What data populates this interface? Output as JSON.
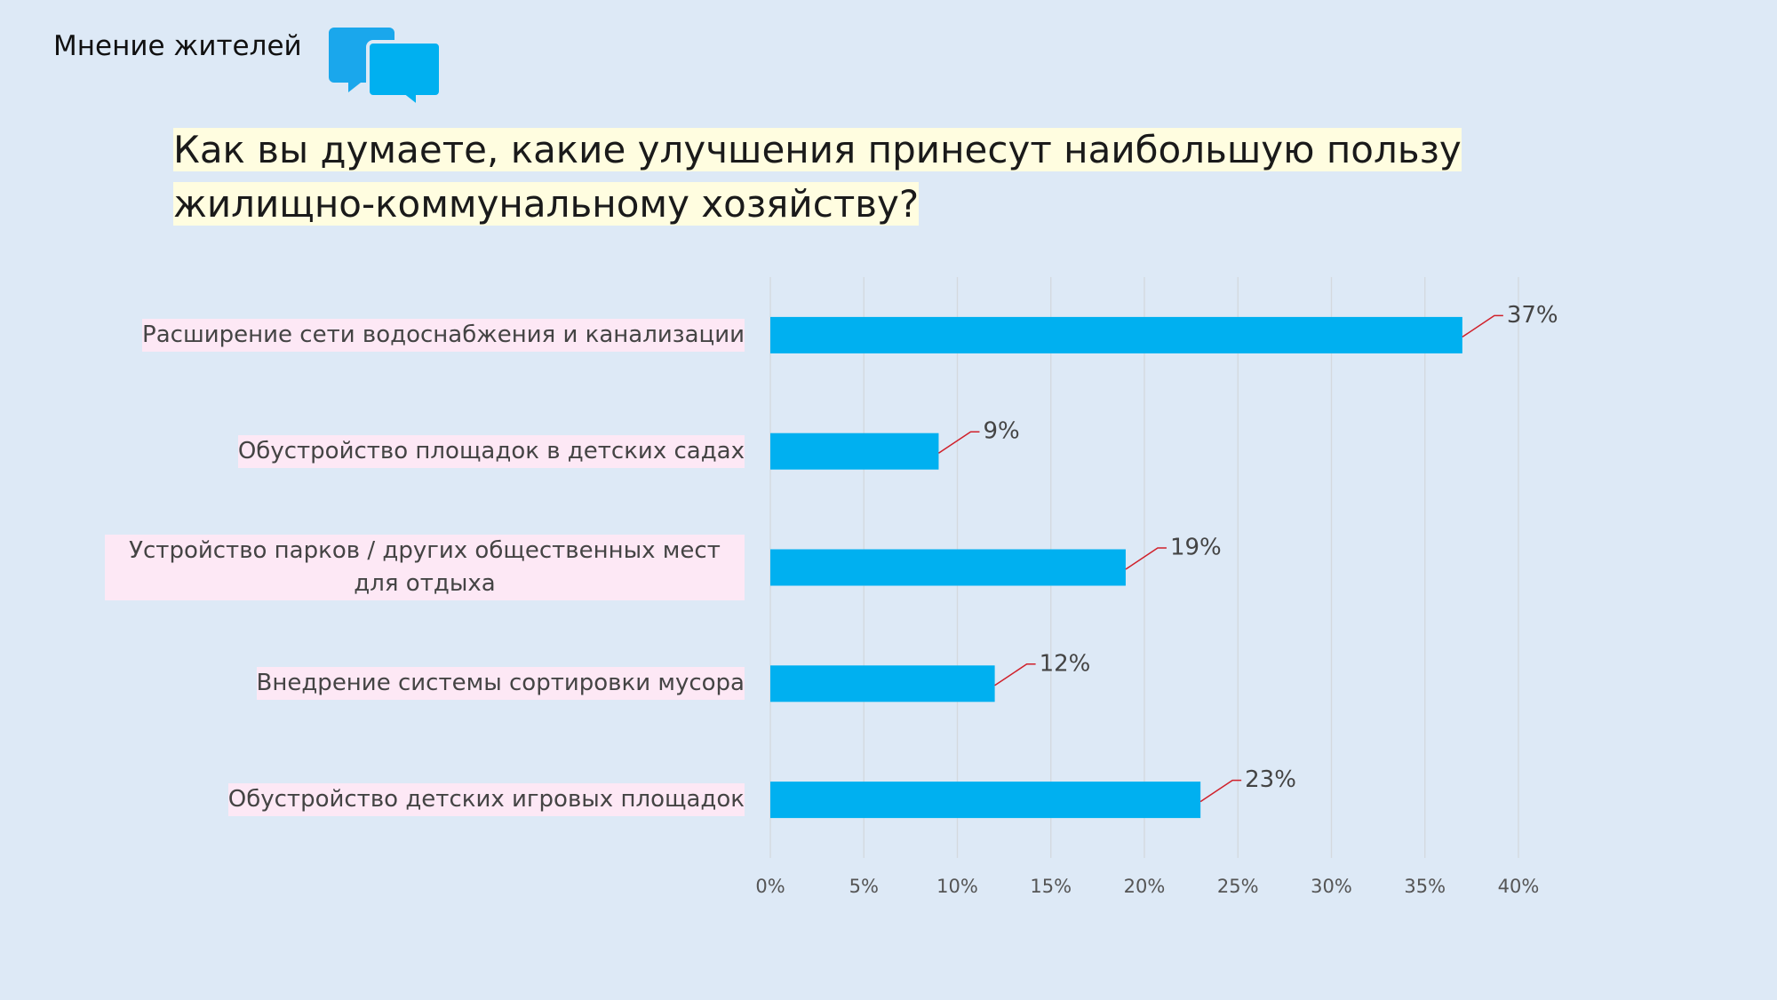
{
  "header": {
    "title": "Мнение жителей"
  },
  "chart_data": {
    "type": "hbar",
    "title": "Как вы думаете, какие улучшения принесут наибольшую пользу жилищно-коммунальному хозяйству?",
    "categories": [
      "Расширение сети водоснабжения и канализации",
      "Обустройство площадок в детских садах",
      "Устройство парков / других общественных мест для отдыха",
      "Внедрение системы сортировки мусора",
      "Обустройство детских игровых площадок"
    ],
    "values": [
      37,
      9,
      19,
      12,
      23
    ],
    "value_labels": [
      "37%",
      "9%",
      "19%",
      "12%",
      "23%"
    ],
    "color": "#00b0f0",
    "xlim": [
      0,
      40
    ],
    "xticks": [
      {
        "value": 0,
        "label": "0%"
      },
      {
        "value": 5,
        "label": "5%"
      },
      {
        "value": 10,
        "label": "10%"
      },
      {
        "value": 15,
        "label": "15%"
      },
      {
        "value": 20,
        "label": "20%"
      },
      {
        "value": 25,
        "label": "25%"
      },
      {
        "value": 30,
        "label": "30%"
      },
      {
        "value": 35,
        "label": "35%"
      },
      {
        "value": 40,
        "label": "40%"
      }
    ],
    "grid": true
  }
}
